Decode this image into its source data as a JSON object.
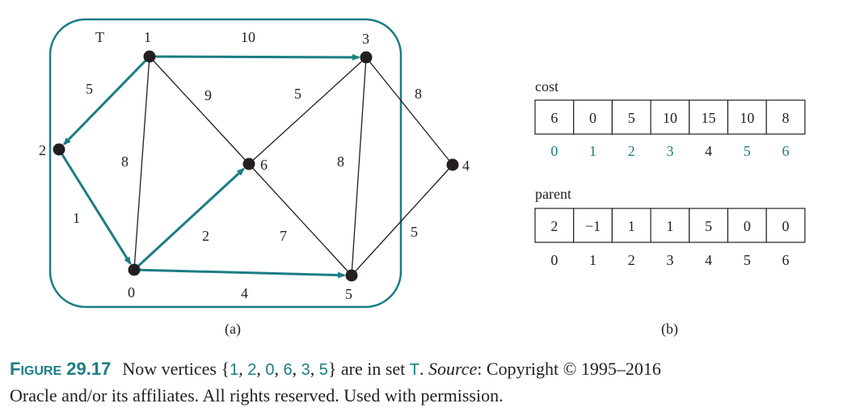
{
  "colors": {
    "accent": "#1b7d85",
    "ink": "#231f20"
  },
  "graph": {
    "set_label": "T",
    "vertices": [
      {
        "id": "0",
        "label": "0"
      },
      {
        "id": "1",
        "label": "1"
      },
      {
        "id": "2",
        "label": "2"
      },
      {
        "id": "3",
        "label": "3"
      },
      {
        "id": "4",
        "label": "4"
      },
      {
        "id": "5",
        "label": "5"
      },
      {
        "id": "6",
        "label": "6"
      }
    ],
    "edges": [
      {
        "from": "1",
        "to": "3",
        "weight": "10",
        "tree": true
      },
      {
        "from": "1",
        "to": "2",
        "weight": "5",
        "tree": true
      },
      {
        "from": "2",
        "to": "0",
        "weight": "1",
        "tree": true
      },
      {
        "from": "0",
        "to": "6",
        "weight": "2",
        "tree": true
      },
      {
        "from": "0",
        "to": "5",
        "weight": "4",
        "tree": true
      },
      {
        "from": "1",
        "to": "0",
        "weight": "8",
        "tree": false
      },
      {
        "from": "1",
        "to": "6",
        "weight": "9",
        "tree": false
      },
      {
        "from": "6",
        "to": "3",
        "weight": "5",
        "tree": false
      },
      {
        "from": "6",
        "to": "5",
        "weight": "7",
        "tree": false
      },
      {
        "from": "3",
        "to": "5",
        "weight": "8",
        "tree": false
      },
      {
        "from": "3",
        "to": "4",
        "weight": "8",
        "tree": false
      },
      {
        "from": "5",
        "to": "4",
        "weight": "5",
        "tree": false
      }
    ],
    "sublabel": "(a)"
  },
  "arrays": {
    "cost": {
      "title": "cost",
      "values": [
        "6",
        "0",
        "5",
        "10",
        "15",
        "10",
        "8"
      ],
      "indices": [
        "0",
        "1",
        "2",
        "3",
        "4",
        "5",
        "6"
      ],
      "in_set": [
        true,
        true,
        true,
        true,
        false,
        true,
        true
      ]
    },
    "parent": {
      "title": "parent",
      "values": [
        "2",
        "−1",
        "1",
        "1",
        "5",
        "0",
        "0"
      ],
      "indices": [
        "0",
        "1",
        "2",
        "3",
        "4",
        "5",
        "6"
      ]
    },
    "sublabel": "(b)"
  },
  "caption": {
    "fig_cap": "F",
    "fig_rest": "IGURE",
    "fig_num": "29.17",
    "t1": "Now vertices {",
    "set": [
      "1",
      "2",
      "0",
      "6",
      "3",
      "5"
    ],
    "t2": "} are in set ",
    "set_name": "T",
    "t3": ". ",
    "source_label": "Source",
    "source_text": ": Copyright © 1995–2016",
    "line2": "Oracle and/or its affiliates. All rights reserved. Used with permission."
  }
}
